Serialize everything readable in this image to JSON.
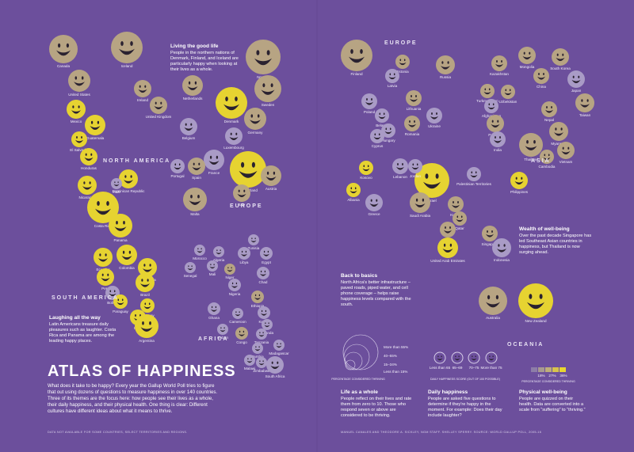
{
  "title": "ATLAS OF HAPPINESS",
  "intro": "What does it take to be happy? Every year the Gallup World Poll tries to figure that out using dozens of questions to measure happiness in over 140 countries. Three of its themes are the focus here: how people see their lives as a whole, their daily happiness, and their physical health. One thing is clear: Different cultures have different ideas about what it means to thrive.",
  "footnote": "DATA NOT AVAILABLE FOR SOME COUNTRIES, SELECT TERRITORIES AND REGIONS.",
  "credit": "MANUEL CANALES AND THEODORE A. SICKLEY, NGM STAFF. SHELLEY SPERRY. SOURCE: WORLD GALLUP POLL, 2005-16",
  "regions": [
    "NORTH AMERICA",
    "SOUTH AMERICA",
    "EUROPE",
    "EUROPE",
    "AFRICA",
    "ASIA",
    "OCEANIA"
  ],
  "notes": [
    {
      "heading": "Living the good life",
      "text": "People in the northern nations of Denmark, Finland, and Iceland are particularly happy when looking at their lives as a whole."
    },
    {
      "heading": "Laughing all the way",
      "text": "Latin Americans treasure daily pleasures such as laughter. Costa Rica and Panama are among the leading happy places."
    },
    {
      "heading": "Back to basics",
      "text": "North Africa's better infrastructure – paved roads, piped water, and cell phone coverage – helps raise happiness levels compared with the south."
    },
    {
      "heading": "Wealth of well-being",
      "text": "Over the past decade Singapore has led Southeast Asian countries in happiness, but Thailand is now surging ahead."
    }
  ],
  "legend": {
    "life": {
      "heading": "Life as a whole",
      "text": "People reflect on their lives and rate them from zero to 10. Those who respond seven or above are considered to be thriving.",
      "levels": [
        "More than 55%",
        "40–55%",
        "15–34%",
        "Less than 15%"
      ],
      "caption": "PERCENTAGE CONSIDERED THRIVING"
    },
    "daily": {
      "heading": "Daily happiness",
      "text": "People are asked five questions to determine if they're happy in the moment. For example: Does their day include laughter?",
      "levels": [
        "Less than 65",
        "65–69",
        "70–75",
        "More than 75"
      ],
      "caption": "DAILY HAPPINESS SCORE (OUT OF 100 POSSIBLE)"
    },
    "physical": {
      "heading": "Physical well-being",
      "text": "People are quizzed on their health. Data are converted into a scale from “suffering” to “thriving.”",
      "levels": [
        "18%",
        "27%",
        "36%"
      ],
      "caption": "PERCENTAGE CONSIDERED THRIVING"
    }
  },
  "countries": [
    "Canada",
    "United States",
    "Mexico",
    "Guatemala",
    "El Salvador",
    "Honduras",
    "Nicaragua",
    "Costa Rica",
    "Panama",
    "Dominican Republic",
    "Haiti",
    "Iceland",
    "Ireland",
    "United Kingdom",
    "Netherlands",
    "Denmark",
    "Norway",
    "Sweden",
    "Belgium",
    "Luxembourg",
    "Germany",
    "France",
    "Switzerland",
    "Austria",
    "Portugal",
    "Spain",
    "Italy",
    "Malta",
    "Finland",
    "Estonia",
    "Russia",
    "Latvia",
    "Lithuania",
    "Poland",
    "Belarus",
    "Hungary",
    "Romania",
    "Ukraine",
    "Cyprus",
    "Kosovo",
    "Albania",
    "Greece",
    "Kazakhstan",
    "Mongolia",
    "South Korea",
    "Japan",
    "China",
    "Turkmenistan",
    "Uzbekistan",
    "Afghanistan",
    "Pakistan",
    "India",
    "Nepal",
    "Myanmar",
    "Taiwan",
    "Thailand",
    "Cambodia",
    "Vietnam",
    "Philippines",
    "Singapore",
    "Indonesia",
    "Israel",
    "Lebanon",
    "Jordan",
    "Palestinian Territories",
    "Saudi Arabia",
    "Kuwait",
    "Qatar",
    "Bahrain",
    "United Arab Emirates",
    "Australia",
    "New Zealand",
    "Ecuador",
    "Colombia",
    "Venezuela",
    "Peru",
    "Brazil",
    "Bolivia",
    "Paraguay",
    "Uruguay",
    "Chile",
    "Argentina",
    "Morocco",
    "Algeria",
    "Tunisia",
    "Libya",
    "Egypt",
    "Senegal",
    "Mali",
    "Niger",
    "Chad",
    "Nigeria",
    "Ghana",
    "Ethiopia",
    "Cameroon",
    "Kenya",
    "Gabon",
    "Congo",
    "Uganda",
    "Tanzania",
    "Madagascar",
    "Zambia",
    "Malawi",
    "Zimbabwe",
    "South Africa"
  ]
}
